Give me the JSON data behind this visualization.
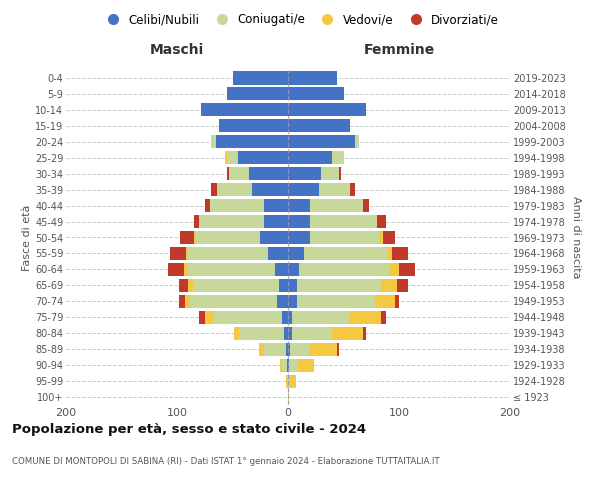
{
  "age_groups": [
    "100+",
    "95-99",
    "90-94",
    "85-89",
    "80-84",
    "75-79",
    "70-74",
    "65-69",
    "60-64",
    "55-59",
    "50-54",
    "45-49",
    "40-44",
    "35-39",
    "30-34",
    "25-29",
    "20-24",
    "15-19",
    "10-14",
    "5-9",
    "0-4"
  ],
  "birth_years": [
    "≤ 1923",
    "1924-1928",
    "1929-1933",
    "1934-1938",
    "1939-1943",
    "1944-1948",
    "1949-1953",
    "1954-1958",
    "1959-1963",
    "1964-1968",
    "1969-1973",
    "1974-1978",
    "1979-1983",
    "1984-1988",
    "1989-1993",
    "1994-1998",
    "1999-2003",
    "2004-2008",
    "2009-2013",
    "2014-2018",
    "2019-2023"
  ],
  "maschi": {
    "celibi": [
      0,
      0,
      1,
      2,
      4,
      5,
      10,
      8,
      12,
      18,
      25,
      22,
      22,
      32,
      35,
      45,
      65,
      62,
      78,
      55,
      50
    ],
    "coniugati": [
      0,
      1,
      4,
      20,
      40,
      62,
      78,
      78,
      78,
      72,
      58,
      58,
      48,
      32,
      18,
      10,
      4,
      0,
      0,
      0,
      0
    ],
    "vedovi": [
      0,
      1,
      2,
      4,
      5,
      8,
      5,
      4,
      4,
      2,
      2,
      0,
      0,
      0,
      0,
      2,
      0,
      0,
      0,
      0,
      0
    ],
    "divorziati": [
      0,
      0,
      0,
      0,
      0,
      5,
      5,
      8,
      14,
      14,
      12,
      5,
      5,
      5,
      2,
      0,
      0,
      0,
      0,
      0,
      0
    ]
  },
  "femmine": {
    "nubili": [
      0,
      0,
      1,
      2,
      4,
      4,
      8,
      8,
      10,
      14,
      20,
      20,
      20,
      28,
      30,
      40,
      60,
      56,
      70,
      50,
      44
    ],
    "coniugate": [
      0,
      2,
      8,
      18,
      36,
      52,
      70,
      76,
      82,
      76,
      62,
      60,
      48,
      28,
      16,
      10,
      4,
      0,
      0,
      0,
      0
    ],
    "vedove": [
      1,
      5,
      14,
      24,
      28,
      28,
      18,
      14,
      8,
      4,
      4,
      0,
      0,
      0,
      0,
      0,
      0,
      0,
      0,
      0,
      0
    ],
    "divorziate": [
      0,
      0,
      0,
      2,
      2,
      4,
      4,
      10,
      14,
      14,
      10,
      8,
      5,
      4,
      2,
      0,
      0,
      0,
      0,
      0,
      0
    ]
  },
  "colors": {
    "celibi_nubili": "#4472C4",
    "coniugati_e": "#C6D89A",
    "vedovi_e": "#F5C842",
    "divorziati_e": "#C0392B"
  },
  "title": "Popolazione per età, sesso e stato civile - 2024",
  "subtitle": "COMUNE DI MONTOPOLI DI SABINA (RI) - Dati ISTAT 1° gennaio 2024 - Elaborazione TUTTAITALIA.IT",
  "xlabel_maschi": "Maschi",
  "xlabel_femmine": "Femmine",
  "ylabel_left": "Fasce di età",
  "ylabel_right": "Anni di nascita",
  "xlim": 200,
  "bg_color": "#ffffff",
  "legend_labels": [
    "Celibi/Nubili",
    "Coniugati/e",
    "Vedovi/e",
    "Divorziati/e"
  ]
}
